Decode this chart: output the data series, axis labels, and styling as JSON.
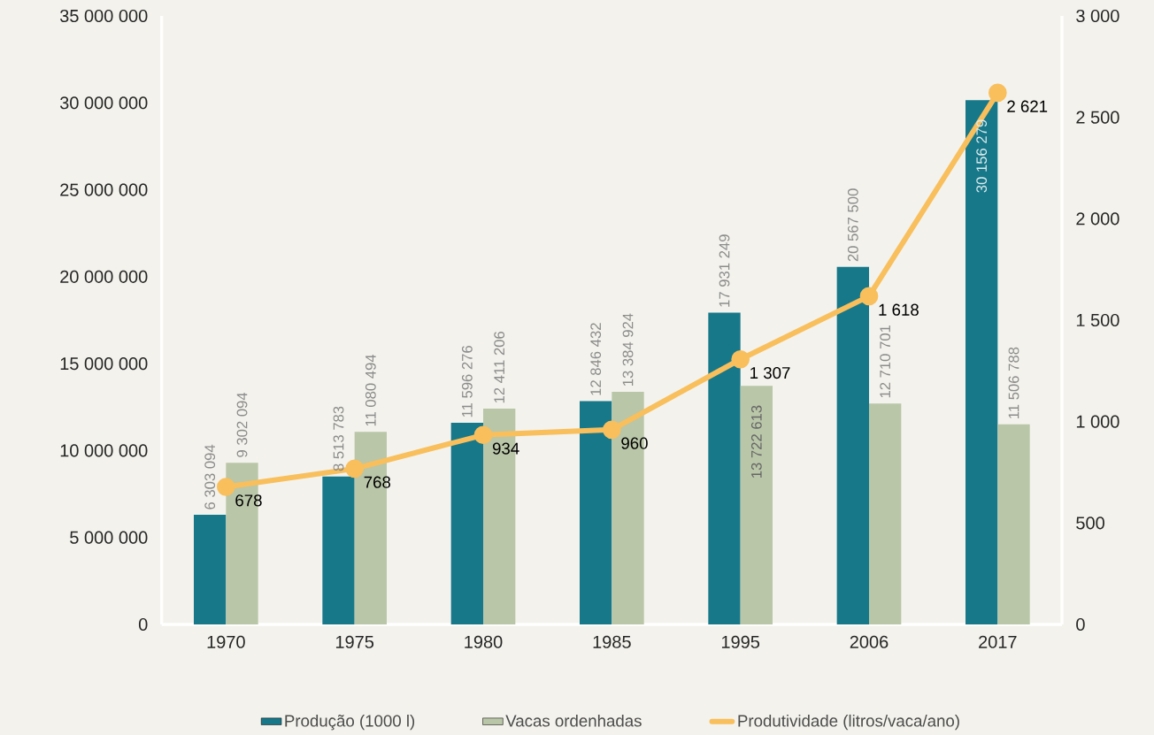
{
  "chart_data": {
    "type": "bar",
    "categories": [
      "1970",
      "1975",
      "1980",
      "1985",
      "1995",
      "2006",
      "2017"
    ],
    "series": [
      {
        "name": "Produção (1000 l)",
        "color": "#17788a",
        "values": [
          6303094,
          8513783,
          11596276,
          12846432,
          17931249,
          20567500,
          30156279
        ],
        "value_labels": [
          "6 303 094",
          "8 513 783",
          "11 596 276",
          "12 846 432",
          "17 931 249",
          "20 567 500",
          "30 156 279"
        ]
      },
      {
        "name": "Vacas ordenhadas",
        "color": "#b9c6a8",
        "values": [
          9302094,
          11080494,
          12411206,
          13384924,
          13722613,
          12710701,
          11506788
        ],
        "value_labels": [
          "9 302 094",
          "11 080 494",
          "12 411 206",
          "13 384 924",
          "13 722 613",
          "12 710 701",
          "11 506 788"
        ]
      },
      {
        "name": "Produtividade (litros/vaca/ano)",
        "type": "line",
        "axis": "y2",
        "color": "#f8bf5c",
        "values": [
          678,
          768,
          934,
          960,
          1307,
          1618,
          2621
        ],
        "value_labels": [
          "678",
          "768",
          "934",
          "960",
          "1 307",
          "1 618",
          "2 621"
        ]
      }
    ],
    "ylim": [
      0,
      35000000
    ],
    "yticks": [
      0,
      {
        "value": 5000000,
        "label": "5 000 000"
      },
      {
        "value": 10000000,
        "label": "10 000 000"
      },
      {
        "value": 15000000,
        "label": "15 000 000"
      },
      {
        "value": 20000000,
        "label": "20 000 000"
      },
      {
        "value": 25000000,
        "label": "25 000 000"
      },
      {
        "value": 30000000,
        "label": "30 000 000"
      },
      {
        "value": 35000000,
        "label": "35 000 000"
      }
    ],
    "y2lim": [
      0,
      3000
    ],
    "y2ticks": [
      0,
      500,
      {
        "value": 1000,
        "label": "1 000"
      },
      {
        "value": 1500,
        "label": "1 500"
      },
      {
        "value": 2000,
        "label": "2 000"
      },
      {
        "value": 2500,
        "label": "2 500"
      },
      {
        "value": 3000,
        "label": "3 000"
      }
    ],
    "marker": "circle",
    "legend": "bottom"
  }
}
